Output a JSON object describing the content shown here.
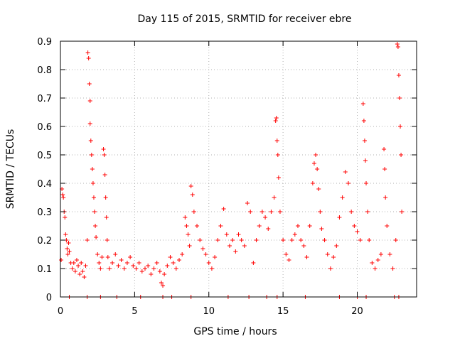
{
  "chart_data": {
    "type": "scatter",
    "title": "Day 115 of 2015, SRMTID for receiver ebre",
    "xlabel": "GPS time / hours",
    "ylabel": "SRMTID / TECUs",
    "xlim": [
      0,
      24
    ],
    "ylim": [
      0,
      0.9
    ],
    "xticks": [
      0,
      5,
      10,
      15,
      20
    ],
    "yticks": [
      0,
      0.1,
      0.2,
      0.3,
      0.4,
      0.5,
      0.6,
      0.7,
      0.8,
      0.9
    ],
    "xtick_labels": [
      "0",
      "5",
      "10",
      "15",
      "20"
    ],
    "ytick_labels": [
      "0",
      "0.1",
      "0.2",
      "0.3",
      "0.4",
      "0.5",
      "0.6",
      "0.7",
      "0.8",
      "0.9"
    ],
    "grid": true,
    "marker": "+",
    "series": [
      {
        "name": "SRMTID",
        "color": "#ff0000",
        "points": [
          [
            0.05,
            0.13
          ],
          [
            0.1,
            0.38
          ],
          [
            0.15,
            0.36
          ],
          [
            0.2,
            0.35
          ],
          [
            0.25,
            0.3
          ],
          [
            0.3,
            0.28
          ],
          [
            0.35,
            0.22
          ],
          [
            0.4,
            0.2
          ],
          [
            0.45,
            0.17
          ],
          [
            0.5,
            0.15
          ],
          [
            0.55,
            0.19
          ],
          [
            0.6,
            0.16
          ],
          [
            0.7,
            0.12
          ],
          [
            0.8,
            0.1
          ],
          [
            0.9,
            0.12
          ],
          [
            1.0,
            0.09
          ],
          [
            1.1,
            0.13
          ],
          [
            1.2,
            0.11
          ],
          [
            1.3,
            0.08
          ],
          [
            1.4,
            0.12
          ],
          [
            1.5,
            0.09
          ],
          [
            1.6,
            0.07
          ],
          [
            1.7,
            0.11
          ],
          [
            1.8,
            0.2
          ],
          [
            1.85,
            0.86
          ],
          [
            1.9,
            0.84
          ],
          [
            1.95,
            0.75
          ],
          [
            2.0,
            0.69
          ],
          [
            2.0,
            0.61
          ],
          [
            2.05,
            0.55
          ],
          [
            2.1,
            0.5
          ],
          [
            2.15,
            0.45
          ],
          [
            2.2,
            0.4
          ],
          [
            2.25,
            0.35
          ],
          [
            2.3,
            0.3
          ],
          [
            2.35,
            0.25
          ],
          [
            2.4,
            0.21
          ],
          [
            2.5,
            0.15
          ],
          [
            2.6,
            0.12
          ],
          [
            2.7,
            0.1
          ],
          [
            2.8,
            0.14
          ],
          [
            2.9,
            0.52
          ],
          [
            2.95,
            0.5
          ],
          [
            3.0,
            0.43
          ],
          [
            3.05,
            0.35
          ],
          [
            3.1,
            0.28
          ],
          [
            3.15,
            0.2
          ],
          [
            3.2,
            0.14
          ],
          [
            3.3,
            0.1
          ],
          [
            3.5,
            0.12
          ],
          [
            3.7,
            0.15
          ],
          [
            3.9,
            0.11
          ],
          [
            4.1,
            0.13
          ],
          [
            4.3,
            0.1
          ],
          [
            4.5,
            0.12
          ],
          [
            4.7,
            0.14
          ],
          [
            4.9,
            0.11
          ],
          [
            5.1,
            0.1
          ],
          [
            5.3,
            0.12
          ],
          [
            5.5,
            0.09
          ],
          [
            5.7,
            0.1
          ],
          [
            5.9,
            0.11
          ],
          [
            6.1,
            0.08
          ],
          [
            6.3,
            0.1
          ],
          [
            6.5,
            0.12
          ],
          [
            6.7,
            0.09
          ],
          [
            6.8,
            0.05
          ],
          [
            6.9,
            0.04
          ],
          [
            7.0,
            0.08
          ],
          [
            7.2,
            0.11
          ],
          [
            7.4,
            0.14
          ],
          [
            7.6,
            0.12
          ],
          [
            7.8,
            0.1
          ],
          [
            8.0,
            0.13
          ],
          [
            8.2,
            0.15
          ],
          [
            8.4,
            0.28
          ],
          [
            8.5,
            0.25
          ],
          [
            8.6,
            0.22
          ],
          [
            8.7,
            0.18
          ],
          [
            8.8,
            0.39
          ],
          [
            8.9,
            0.36
          ],
          [
            9.0,
            0.3
          ],
          [
            9.2,
            0.25
          ],
          [
            9.4,
            0.2
          ],
          [
            9.6,
            0.17
          ],
          [
            9.8,
            0.15
          ],
          [
            10.0,
            0.12
          ],
          [
            10.2,
            0.1
          ],
          [
            10.4,
            0.14
          ],
          [
            10.6,
            0.2
          ],
          [
            10.8,
            0.25
          ],
          [
            11.0,
            0.31
          ],
          [
            11.2,
            0.22
          ],
          [
            11.4,
            0.18
          ],
          [
            11.6,
            0.2
          ],
          [
            11.8,
            0.16
          ],
          [
            12.0,
            0.22
          ],
          [
            12.2,
            0.2
          ],
          [
            12.4,
            0.18
          ],
          [
            12.6,
            0.33
          ],
          [
            12.8,
            0.3
          ],
          [
            13.0,
            0.12
          ],
          [
            13.2,
            0.2
          ],
          [
            13.4,
            0.25
          ],
          [
            13.6,
            0.3
          ],
          [
            13.8,
            0.28
          ],
          [
            14.0,
            0.24
          ],
          [
            14.2,
            0.3
          ],
          [
            14.4,
            0.35
          ],
          [
            14.5,
            0.62
          ],
          [
            14.55,
            0.63
          ],
          [
            14.6,
            0.55
          ],
          [
            14.65,
            0.5
          ],
          [
            14.7,
            0.42
          ],
          [
            14.8,
            0.3
          ],
          [
            15.0,
            0.2
          ],
          [
            15.2,
            0.15
          ],
          [
            15.4,
            0.13
          ],
          [
            15.6,
            0.2
          ],
          [
            15.8,
            0.22
          ],
          [
            16.0,
            0.25
          ],
          [
            16.2,
            0.2
          ],
          [
            16.4,
            0.18
          ],
          [
            16.6,
            0.14
          ],
          [
            16.8,
            0.25
          ],
          [
            17.0,
            0.4
          ],
          [
            17.1,
            0.47
          ],
          [
            17.2,
            0.5
          ],
          [
            17.3,
            0.45
          ],
          [
            17.4,
            0.38
          ],
          [
            17.5,
            0.3
          ],
          [
            17.6,
            0.24
          ],
          [
            17.8,
            0.2
          ],
          [
            18.0,
            0.15
          ],
          [
            18.2,
            0.1
          ],
          [
            18.4,
            0.14
          ],
          [
            18.6,
            0.18
          ],
          [
            18.8,
            0.28
          ],
          [
            19.0,
            0.35
          ],
          [
            19.2,
            0.44
          ],
          [
            19.4,
            0.4
          ],
          [
            19.6,
            0.3
          ],
          [
            19.8,
            0.25
          ],
          [
            20.0,
            0.23
          ],
          [
            20.2,
            0.2
          ],
          [
            20.4,
            0.68
          ],
          [
            20.45,
            0.62
          ],
          [
            20.5,
            0.55
          ],
          [
            20.55,
            0.48
          ],
          [
            20.6,
            0.4
          ],
          [
            20.7,
            0.3
          ],
          [
            20.8,
            0.2
          ],
          [
            21.0,
            0.12
          ],
          [
            21.2,
            0.1
          ],
          [
            21.4,
            0.13
          ],
          [
            21.6,
            0.15
          ],
          [
            21.8,
            0.52
          ],
          [
            21.85,
            0.45
          ],
          [
            21.9,
            0.35
          ],
          [
            22.0,
            0.25
          ],
          [
            22.2,
            0.15
          ],
          [
            22.4,
            0.1
          ],
          [
            22.6,
            0.2
          ],
          [
            22.7,
            0.89
          ],
          [
            22.75,
            0.88
          ],
          [
            22.8,
            0.78
          ],
          [
            22.85,
            0.7
          ],
          [
            22.9,
            0.6
          ],
          [
            22.95,
            0.5
          ],
          [
            23.0,
            0.3
          ],
          [
            0.6,
            0.0
          ],
          [
            1.8,
            0.0
          ],
          [
            2.7,
            0.0
          ],
          [
            3.8,
            0.0
          ],
          [
            5.4,
            0.0
          ],
          [
            6.9,
            0.0
          ],
          [
            7.5,
            0.0
          ],
          [
            8.8,
            0.0
          ],
          [
            11.3,
            0.0
          ],
          [
            12.7,
            0.0
          ],
          [
            13.9,
            0.0
          ],
          [
            14.6,
            0.0
          ],
          [
            16.5,
            0.0
          ],
          [
            18.8,
            0.0
          ],
          [
            20.0,
            0.0
          ],
          [
            20.6,
            0.0
          ],
          [
            22.5,
            0.0
          ],
          [
            22.8,
            0.0
          ]
        ]
      }
    ]
  }
}
